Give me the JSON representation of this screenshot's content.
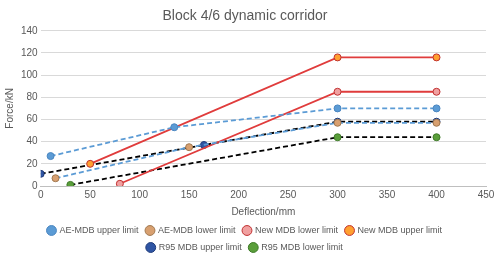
{
  "chart_data": {
    "type": "line",
    "title": "Block 4/6 dynamic corridor",
    "x_label": "Deflection/mm",
    "y_label": "Force/kN",
    "xlim": [
      0,
      450
    ],
    "xticks": [
      0,
      50,
      100,
      150,
      200,
      250,
      300,
      350,
      400,
      450
    ],
    "ylim": [
      0,
      140
    ],
    "yticks": [
      0,
      20,
      40,
      60,
      80,
      100,
      120,
      140
    ],
    "grid": "y",
    "legend": "bottom",
    "series": [
      {
        "name": "AE-MDB upper limit",
        "color": "#5b9bd5",
        "line_style": "dashed",
        "marker": "circle",
        "x": [
          10,
          135,
          300,
          400
        ],
        "values": [
          27,
          53,
          70,
          70
        ]
      },
      {
        "name": "AE-MDB lower limit",
        "color": "#5b9bd5",
        "line_style": "dashed",
        "marker": "circle",
        "x": [
          15,
          150,
          300,
          400
        ],
        "values": [
          7,
          35,
          57,
          57
        ]
      },
      {
        "name": "New MDB lower limit",
        "color": "#e03c3c",
        "line_style": "solid",
        "marker": "circle",
        "x": [
          80,
          300,
          400
        ],
        "values": [
          2,
          85,
          85
        ]
      },
      {
        "name": "New MDB upper limit",
        "color": "#e03c3c",
        "line_style": "solid",
        "marker": "circle",
        "x": [
          50,
          300,
          400
        ],
        "values": [
          20,
          116,
          116
        ]
      },
      {
        "name": "R95 MDB upper limit",
        "color": "#000000",
        "line_style": "dashed",
        "marker": "circle",
        "x": [
          0,
          165,
          300,
          400
        ],
        "values": [
          11,
          37,
          58,
          58
        ]
      },
      {
        "name": "R95 MDB lower limit",
        "color": "#000000",
        "line_style": "dashed",
        "marker": "circle",
        "x": [
          30,
          300,
          400
        ],
        "values": [
          1,
          44,
          44
        ]
      }
    ]
  }
}
